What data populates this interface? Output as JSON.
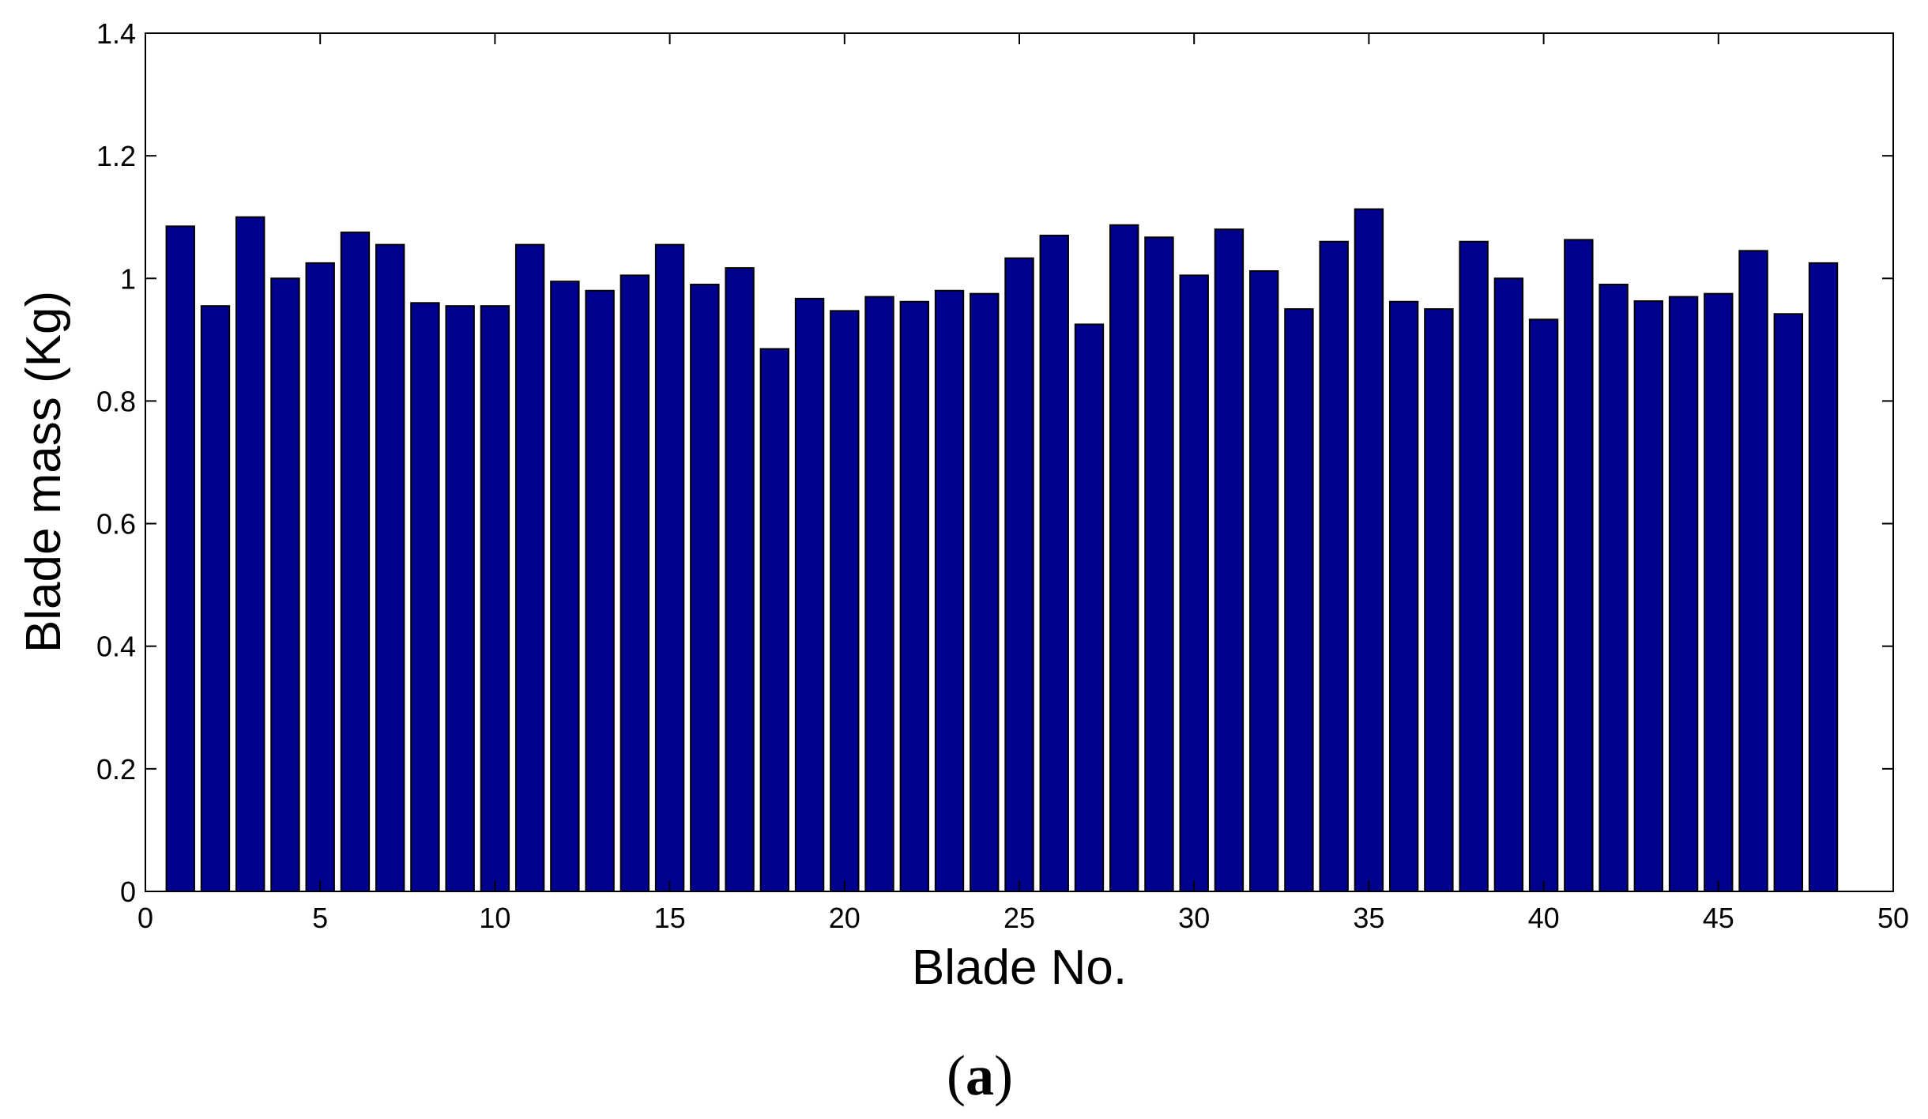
{
  "chart_data": {
    "type": "bar",
    "title": "",
    "xlabel": "Blade No.",
    "ylabel": "Blade mass (Kg)",
    "panel_label": {
      "open": "(",
      "letter": "a",
      "close": ")"
    },
    "xlim": [
      0,
      50
    ],
    "ylim": [
      0,
      1.4
    ],
    "xticks": [
      "0",
      "5",
      "10",
      "15",
      "20",
      "25",
      "30",
      "35",
      "40",
      "45",
      "50"
    ],
    "yticks": [
      "0",
      "0.2",
      "0.4",
      "0.6",
      "0.8",
      "1",
      "1.2",
      "1.4"
    ],
    "grid": false,
    "legend": "none",
    "bar_color": "#00008f",
    "edge_color": "#000000",
    "categories": [
      1,
      2,
      3,
      4,
      5,
      6,
      7,
      8,
      9,
      10,
      11,
      12,
      13,
      14,
      15,
      16,
      17,
      18,
      19,
      20,
      21,
      22,
      23,
      24,
      25,
      26,
      27,
      28,
      29,
      30,
      31,
      32,
      33,
      34,
      35,
      36,
      37,
      38,
      39,
      40,
      41,
      42,
      43,
      44,
      45,
      46,
      47,
      48
    ],
    "values": [
      1.085,
      0.955,
      1.1,
      1.0,
      1.025,
      1.075,
      1.055,
      0.96,
      0.955,
      0.955,
      1.055,
      0.995,
      0.98,
      1.005,
      1.055,
      0.99,
      1.017,
      0.885,
      0.967,
      0.947,
      0.97,
      0.962,
      0.98,
      0.975,
      1.033,
      1.07,
      0.925,
      1.087,
      1.067,
      1.005,
      1.08,
      1.012,
      0.95,
      1.06,
      1.113,
      0.962,
      0.95,
      1.06,
      1.0,
      0.933,
      1.063,
      0.99,
      0.963,
      0.97,
      0.975,
      1.045,
      0.942,
      1.025
    ]
  }
}
